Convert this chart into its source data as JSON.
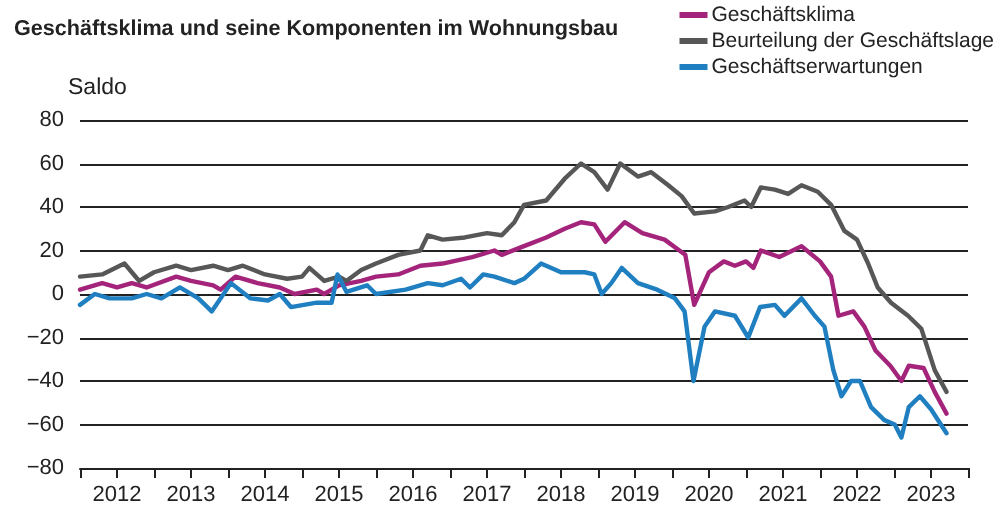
{
  "chart_data": {
    "type": "line",
    "title": "Geschäftsklima und seine Komponenten im Wohnungsbau",
    "ylabel": "Saldo",
    "xlim": [
      2012,
      2024
    ],
    "xticks": [
      {
        "value": 2012,
        "label": null
      },
      {
        "value": 2012.5,
        "label": "2012"
      },
      {
        "value": 2013,
        "label": null
      },
      {
        "value": 2013.5,
        "label": "2013"
      },
      {
        "value": 2014,
        "label": null
      },
      {
        "value": 2014.5,
        "label": "2014"
      },
      {
        "value": 2015,
        "label": null
      },
      {
        "value": 2015.5,
        "label": "2015"
      },
      {
        "value": 2016,
        "label": null
      },
      {
        "value": 2016.5,
        "label": "2016"
      },
      {
        "value": 2017,
        "label": null
      },
      {
        "value": 2017.5,
        "label": "2017"
      },
      {
        "value": 2018,
        "label": null
      },
      {
        "value": 2018.5,
        "label": "2018"
      },
      {
        "value": 2019,
        "label": null
      },
      {
        "value": 2019.5,
        "label": "2019"
      },
      {
        "value": 2020,
        "label": null
      },
      {
        "value": 2020.5,
        "label": "2020"
      },
      {
        "value": 2021,
        "label": null
      },
      {
        "value": 2021.5,
        "label": "2021"
      },
      {
        "value": 2022,
        "label": null
      },
      {
        "value": 2022.5,
        "label": "2022"
      },
      {
        "value": 2023,
        "label": null
      },
      {
        "value": 2023.5,
        "label": "2023"
      },
      {
        "value": 2024,
        "label": null
      }
    ],
    "ylim": [
      -80,
      80
    ],
    "yticks": [
      -80,
      -60,
      -40,
      -20,
      0,
      20,
      40,
      60,
      80
    ],
    "grid": "y",
    "legend": "top right",
    "marker": "none",
    "line_style": "solid",
    "series": [
      {
        "name": "Geschäftsklima",
        "color": "#a3247a",
        "x": [
          2012.0,
          2012.3,
          2012.5,
          2012.7,
          2012.9,
          2013.3,
          2013.5,
          2013.8,
          2013.9,
          2014.1,
          2014.4,
          2014.7,
          2014.9,
          2015.2,
          2015.3,
          2015.5,
          2015.8,
          2016.0,
          2016.3,
          2016.6,
          2016.9,
          2017.3,
          2017.6,
          2017.7,
          2018.0,
          2018.3,
          2018.55,
          2018.77,
          2018.95,
          2019.1,
          2019.36,
          2019.6,
          2019.9,
          2020.1,
          2020.18,
          2020.3,
          2020.5,
          2020.7,
          2020.85,
          2021.0,
          2021.1,
          2021.2,
          2021.45,
          2021.75,
          2022.0,
          2022.15,
          2022.25,
          2022.45,
          2022.6,
          2022.75,
          2022.95,
          2023.1,
          2023.2,
          2023.4,
          2023.55,
          2023.71
        ],
        "values": [
          2,
          5,
          3,
          5,
          3,
          8,
          6,
          4,
          2,
          8,
          5,
          3,
          0,
          2,
          0,
          4,
          6,
          8,
          9,
          13,
          14,
          17,
          20,
          18,
          22,
          26,
          30,
          33,
          32,
          24,
          33,
          28,
          25,
          20,
          18,
          -5,
          10,
          15,
          13,
          15,
          12,
          20,
          17,
          22,
          15,
          8,
          -10,
          -8,
          -15,
          -26,
          -33,
          -40,
          -33,
          -34,
          -45,
          -55
        ]
      },
      {
        "name": "Beurteilung der Geschäftslage",
        "color": "#575757",
        "x": [
          2012.0,
          2012.3,
          2012.6,
          2012.8,
          2013.0,
          2013.3,
          2013.5,
          2013.8,
          2014.0,
          2014.2,
          2014.5,
          2014.8,
          2015.0,
          2015.1,
          2015.3,
          2015.5,
          2015.6,
          2015.8,
          2016.0,
          2016.3,
          2016.6,
          2016.7,
          2016.9,
          2017.2,
          2017.5,
          2017.7,
          2017.87,
          2018.0,
          2018.3,
          2018.55,
          2018.77,
          2018.95,
          2019.13,
          2019.3,
          2019.54,
          2019.72,
          2019.95,
          2020.13,
          2020.3,
          2020.58,
          2020.76,
          2020.98,
          2021.07,
          2021.2,
          2021.39,
          2021.57,
          2021.75,
          2021.97,
          2022.15,
          2022.33,
          2022.5,
          2022.65,
          2022.78,
          2022.96,
          2023.19,
          2023.37,
          2023.55,
          2023.71
        ],
        "values": [
          8,
          9,
          14,
          6,
          10,
          13,
          11,
          13,
          11,
          13,
          9,
          7,
          8,
          12,
          6,
          8,
          6,
          11,
          14,
          18,
          20,
          27,
          25,
          26,
          28,
          27,
          33,
          41,
          43,
          53,
          60,
          56,
          48,
          60,
          54,
          56,
          50,
          45,
          37,
          38,
          40,
          43,
          40,
          49,
          48,
          46,
          50,
          47,
          41,
          29,
          25,
          14,
          3,
          -4,
          -10,
          -16,
          -35,
          -45
        ]
      },
      {
        "name": "Geschäftserwartungen",
        "color": "#1f7fc1",
        "x": [
          2012.0,
          2012.2,
          2012.4,
          2012.7,
          2012.9,
          2013.1,
          2013.35,
          2013.6,
          2013.78,
          2014.04,
          2014.3,
          2014.54,
          2014.7,
          2014.85,
          2015.2,
          2015.4,
          2015.48,
          2015.6,
          2015.88,
          2016.0,
          2016.4,
          2016.7,
          2016.9,
          2017.15,
          2017.27,
          2017.45,
          2017.6,
          2017.87,
          2018.0,
          2018.23,
          2018.5,
          2018.82,
          2018.95,
          2019.05,
          2019.18,
          2019.32,
          2019.54,
          2019.8,
          2020.04,
          2020.17,
          2020.29,
          2020.44,
          2020.58,
          2020.85,
          2021.03,
          2021.19,
          2021.39,
          2021.52,
          2021.75,
          2021.93,
          2022.06,
          2022.18,
          2022.29,
          2022.42,
          2022.54,
          2022.69,
          2022.87,
          2023.01,
          2023.1,
          2023.2,
          2023.35,
          2023.5,
          2023.71
        ],
        "values": [
          -5,
          0,
          -2,
          -2,
          0,
          -2,
          3,
          -2,
          -8,
          5,
          -2,
          -3,
          0,
          -6,
          -4,
          -4,
          9,
          1,
          4,
          0,
          2,
          5,
          4,
          7,
          3,
          9,
          8,
          5,
          7,
          14,
          10,
          10,
          9,
          0,
          5,
          12,
          5,
          2,
          -2,
          -8,
          -40,
          -15,
          -8,
          -10,
          -20,
          -6,
          -5,
          -10,
          -2,
          -10,
          -15,
          -35,
          -47,
          -40,
          -40,
          -52,
          -58,
          -60,
          -66,
          -52,
          -47,
          -53,
          -64
        ]
      }
    ]
  }
}
